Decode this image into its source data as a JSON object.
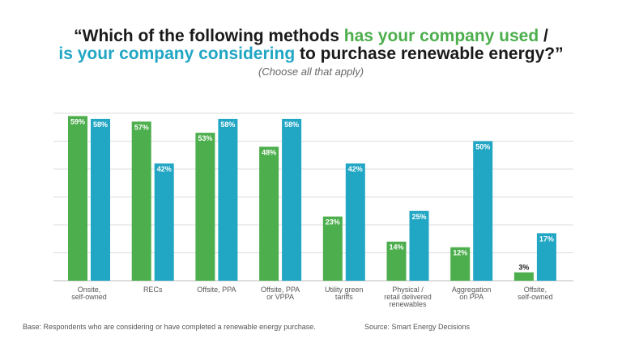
{
  "title": {
    "line1_prefix": "“Which of the following methods ",
    "line1_highlight": "has your company used",
    "line1_suffix": " /",
    "line2_highlight": "is your company considering",
    "line2_suffix": " to purchase renewable energy?”"
  },
  "subtitle": "(Choose all that apply)",
  "footer": {
    "base": "Base: Respondents who are considering or have completed a renewable energy purchase.",
    "source": "Source: Smart Energy Decisions"
  },
  "colors": {
    "used": "#4cae4c",
    "considering": "#21a6c4",
    "text_dark": "#1a1a1a"
  },
  "chart_data": {
    "type": "bar",
    "categories": [
      [
        "Onsite,",
        "self-owned"
      ],
      [
        "RECs"
      ],
      [
        "Offsite, PPA"
      ],
      [
        "Offsite, PPA",
        "or VPPA"
      ],
      [
        "Utility green",
        "tariffs"
      ],
      [
        "Physical /",
        "retail delivered",
        "renewables"
      ],
      [
        "Aggregation",
        "on PPA"
      ],
      [
        "Offsite,",
        "self-owned"
      ]
    ],
    "series": [
      {
        "name": "has your company used",
        "values": [
          59,
          57,
          53,
          48,
          23,
          14,
          12,
          3
        ]
      },
      {
        "name": "is your company considering",
        "values": [
          58,
          42,
          58,
          58,
          42,
          25,
          50,
          17
        ]
      }
    ],
    "data_labels": [
      [
        "59%",
        "57%",
        "53%",
        "48%",
        "23%",
        "14%",
        "12%",
        "3%"
      ],
      [
        "58%",
        "42%",
        "58%",
        "58%",
        "42%",
        "25%",
        "50%",
        "17%"
      ]
    ],
    "ylim": [
      0,
      60
    ],
    "grid": true,
    "legend": "none"
  }
}
